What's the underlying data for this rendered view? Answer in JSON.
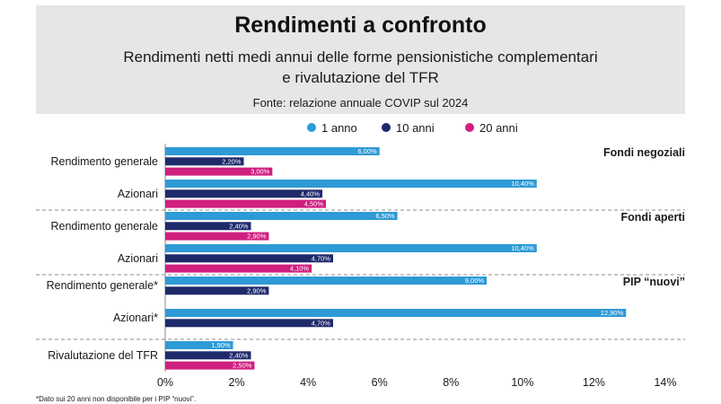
{
  "header": {
    "title": "Rendimenti a confronto",
    "subtitle_line1": "Rendimenti netti medi annui delle forme pensionistiche complementari",
    "subtitle_line2": "e rivalutazione del TFR",
    "source": "Fonte: relazione annuale COVIP sul 2024"
  },
  "footnote": "*Dato sui 20 anni non disponibile per i PIP “nuovi”.",
  "colors": {
    "1 anno": "#2e9ad6",
    "10 anni": "#1f2a6b",
    "20 anni": "#cf1f7f"
  },
  "chart_data": {
    "type": "bar",
    "orientation": "horizontal",
    "xlim": [
      0,
      14
    ],
    "x_ticks": [
      "0%",
      "2%",
      "4%",
      "6%",
      "8%",
      "10%",
      "12%",
      "14%"
    ],
    "legend": [
      "1 anno",
      "10 anni",
      "20 anni"
    ],
    "legend_position": "top",
    "groups": [
      {
        "name": "Fondi negoziali",
        "categories": [
          {
            "label": "Rendimento generale",
            "values": [
              6.0,
              2.2,
              3.0
            ],
            "labels": [
              "6,00%",
              "2,20%",
              "3,00%"
            ]
          },
          {
            "label": "Azionari",
            "values": [
              10.4,
              4.4,
              4.5
            ],
            "labels": [
              "10,40%",
              "4,40%",
              "4,50%"
            ]
          }
        ]
      },
      {
        "name": "Fondi aperti",
        "categories": [
          {
            "label": "Rendimento generale",
            "values": [
              6.5,
              2.4,
              2.9
            ],
            "labels": [
              "6,50%",
              "2,40%",
              "2,90%"
            ]
          },
          {
            "label": "Azionari",
            "values": [
              10.4,
              4.7,
              4.1
            ],
            "labels": [
              "10,40%",
              "4,70%",
              "4,10%"
            ]
          }
        ]
      },
      {
        "name": "PIP “nuovi”",
        "categories": [
          {
            "label": "Rendimento generale*",
            "values": [
              9.0,
              2.9
            ],
            "labels": [
              "9,00%",
              "2,90%"
            ]
          },
          {
            "label": "Azionari*",
            "values": [
              12.9,
              4.7
            ],
            "labels": [
              "12,90%",
              "4,70%"
            ]
          }
        ]
      },
      {
        "name": "",
        "categories": [
          {
            "label": "Rivalutazione del TFR",
            "values": [
              1.9,
              2.4,
              2.5
            ],
            "labels": [
              "1,90%",
              "2,40%",
              "2,50%"
            ]
          }
        ]
      }
    ]
  }
}
